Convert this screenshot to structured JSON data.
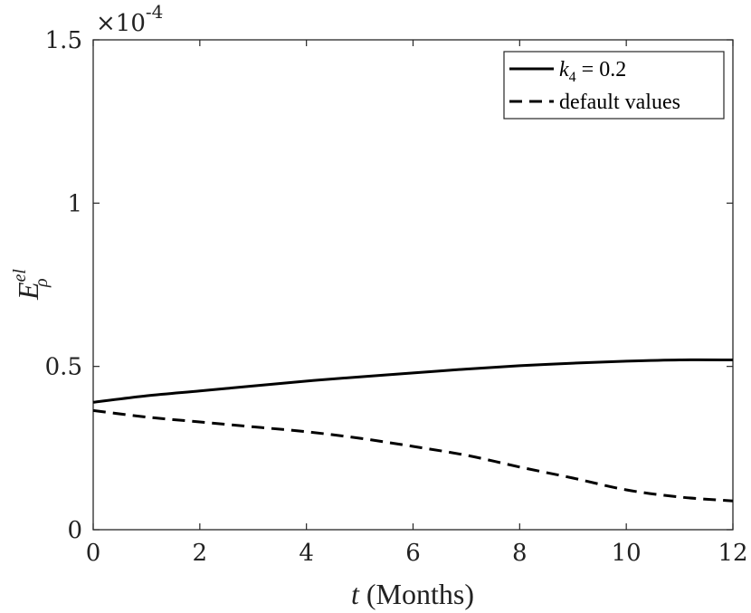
{
  "chart_data": {
    "type": "line",
    "x_axis": {
      "label_var": "t",
      "label_unit": "(Months)",
      "range": [
        0,
        12
      ],
      "ticks": [
        0,
        2,
        4,
        6,
        8,
        10,
        12
      ],
      "tick_labels": [
        "0",
        "2",
        "4",
        "6",
        "8",
        "10",
        "12"
      ]
    },
    "y_axis": {
      "label_main": "E",
      "label_sup": "el",
      "label_sub": "ρ",
      "range": [
        0,
        1.5
      ],
      "ticks": [
        0,
        0.5,
        1,
        1.5
      ],
      "tick_labels": [
        "0",
        "0.5",
        "1",
        "1.5"
      ],
      "exponent_base": "×10",
      "exponent_power": "-4"
    },
    "grid": false,
    "legend": {
      "placement": "top-right",
      "entries": [
        {
          "var": "k",
          "sub": "4",
          "rest": " = 0.2"
        },
        {
          "text": "default values"
        }
      ]
    },
    "series": [
      {
        "style": "solid",
        "color": "#000000",
        "x": [
          0,
          1,
          2,
          3,
          4,
          5,
          6,
          7,
          8,
          9,
          10,
          11,
          12
        ],
        "y": [
          0.39,
          0.41,
          0.425,
          0.44,
          0.455,
          0.468,
          0.48,
          0.492,
          0.502,
          0.51,
          0.516,
          0.52,
          0.52
        ]
      },
      {
        "style": "dashed",
        "color": "#000000",
        "x": [
          0,
          1,
          2,
          3,
          4,
          5,
          6,
          7,
          8,
          9,
          10,
          11,
          12
        ],
        "y": [
          0.365,
          0.345,
          0.33,
          0.315,
          0.3,
          0.28,
          0.255,
          0.228,
          0.192,
          0.158,
          0.122,
          0.1,
          0.088
        ]
      }
    ]
  }
}
